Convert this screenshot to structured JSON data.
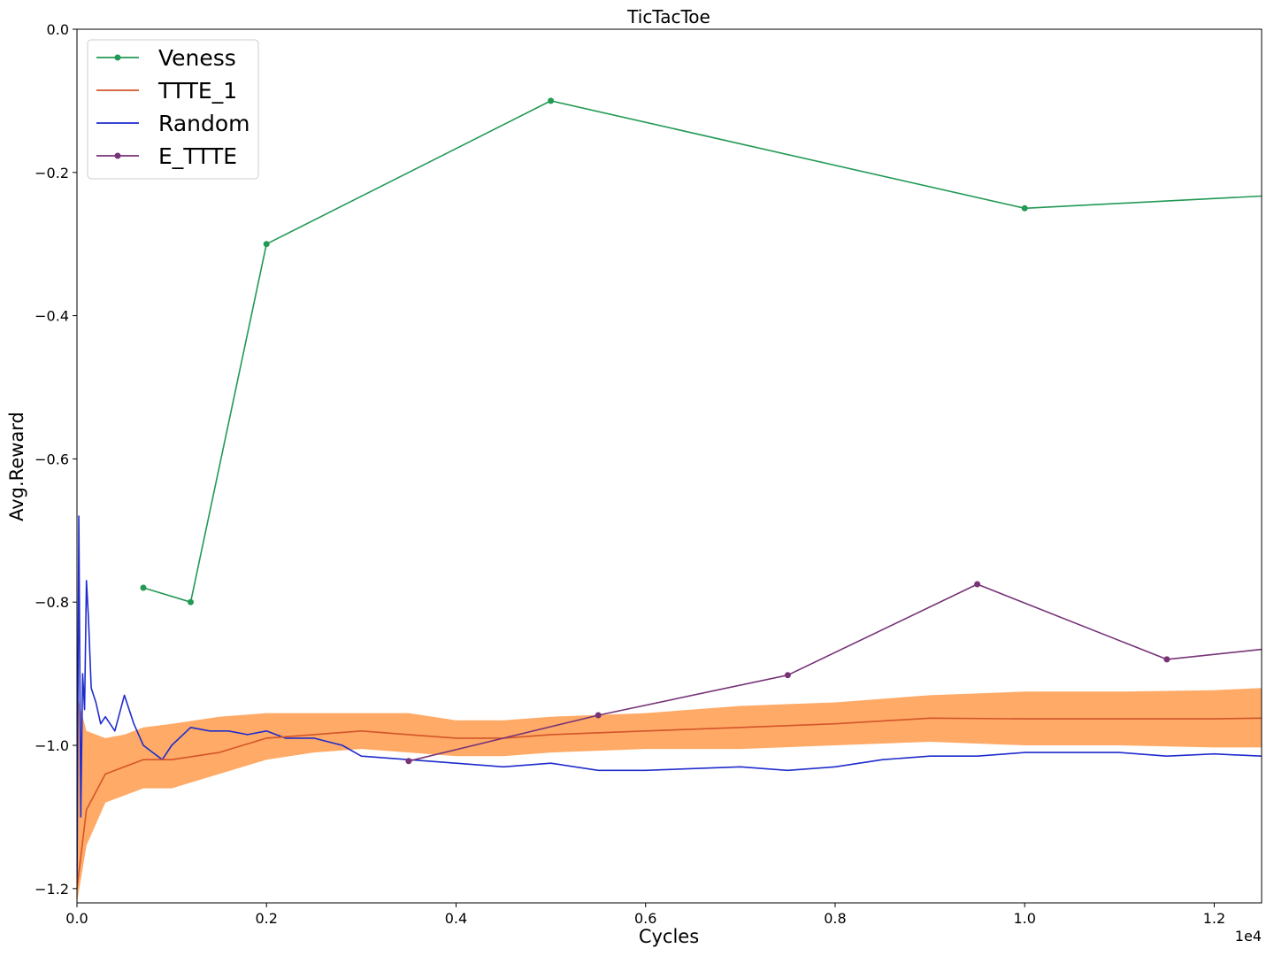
{
  "chart_data": {
    "type": "line",
    "title": "TicTacToe",
    "xlabel": "Cycles",
    "ylabel": "Avg.Reward",
    "x_offset_label": "1e4",
    "xlim": [
      0,
      12500
    ],
    "ylim": [
      -1.22,
      0.0
    ],
    "x_ticks": [
      0,
      2000,
      4000,
      6000,
      8000,
      10000,
      12000
    ],
    "x_tick_labels": [
      "0.0",
      "0.2",
      "0.4",
      "0.6",
      "0.8",
      "1.0",
      "1.2"
    ],
    "y_ticks": [
      -1.2,
      -1.0,
      -0.8,
      -0.6,
      -0.4,
      -0.2,
      0.0
    ],
    "y_tick_labels": [
      "−1.2",
      "−1.0",
      "−0.8",
      "−0.6",
      "−0.4",
      "−0.2",
      "0.0"
    ],
    "grid": false,
    "legend_position": "top-left",
    "series": [
      {
        "name": "Veness",
        "color": "#229955",
        "marker": "circle",
        "x": [
          700,
          1200,
          2000,
          5000,
          10000,
          12500
        ],
        "y": [
          -0.78,
          -0.8,
          -0.3,
          -0.1,
          -0.25,
          -0.233
        ]
      },
      {
        "name": "TTTE_1",
        "color": "#d4552a",
        "band_color": "#ffaa66",
        "marker": "none",
        "x": [
          0,
          100,
          300,
          500,
          700,
          1000,
          1500,
          2000,
          2500,
          3000,
          3500,
          4000,
          4500,
          5000,
          6000,
          7000,
          8000,
          9000,
          10000,
          11000,
          12000,
          12500
        ],
        "y": [
          -1.2,
          -1.09,
          -1.04,
          -1.03,
          -1.02,
          -1.02,
          -1.01,
          -0.99,
          -0.985,
          -0.98,
          -0.985,
          -0.99,
          -0.99,
          -0.985,
          -0.98,
          -0.975,
          -0.97,
          -0.962,
          -0.963,
          -0.963,
          -0.963,
          -0.962
        ],
        "band_lower": [
          -1.22,
          -1.14,
          -1.08,
          -1.07,
          -1.06,
          -1.06,
          -1.04,
          -1.02,
          -1.01,
          -1.005,
          -1.01,
          -1.015,
          -1.015,
          -1.01,
          -1.005,
          -1.005,
          -1.0,
          -0.995,
          -1.0,
          -1.0,
          -1.003,
          -1.003
        ],
        "band_upper": [
          -0.93,
          -0.98,
          -0.99,
          -0.985,
          -0.975,
          -0.97,
          -0.96,
          -0.955,
          -0.955,
          -0.955,
          -0.955,
          -0.965,
          -0.965,
          -0.96,
          -0.955,
          -0.945,
          -0.94,
          -0.93,
          -0.925,
          -0.925,
          -0.923,
          -0.92
        ]
      },
      {
        "name": "Random",
        "color": "#1f2ccc",
        "marker": "none",
        "x": [
          0,
          20,
          40,
          60,
          80,
          100,
          120,
          150,
          200,
          250,
          300,
          400,
          500,
          600,
          700,
          800,
          900,
          1000,
          1200,
          1400,
          1600,
          1800,
          2000,
          2200,
          2500,
          2800,
          3000,
          3500,
          4000,
          4500,
          5000,
          5500,
          6000,
          7000,
          7500,
          8000,
          8500,
          9000,
          9500,
          10000,
          11000,
          11500,
          12000,
          12500
        ],
        "y": [
          -1.2,
          -0.68,
          -1.1,
          -0.9,
          -0.95,
          -0.77,
          -0.82,
          -0.92,
          -0.94,
          -0.97,
          -0.96,
          -0.98,
          -0.93,
          -0.97,
          -1.0,
          -1.01,
          -1.02,
          -1.0,
          -0.975,
          -0.98,
          -0.98,
          -0.985,
          -0.98,
          -0.99,
          -0.99,
          -1.0,
          -1.015,
          -1.02,
          -1.025,
          -1.03,
          -1.025,
          -1.035,
          -1.035,
          -1.03,
          -1.035,
          -1.03,
          -1.02,
          -1.015,
          -1.015,
          -1.01,
          -1.01,
          -1.015,
          -1.012,
          -1.015
        ]
      },
      {
        "name": "E_TTTE",
        "color": "#773377",
        "marker": "circle",
        "x": [
          3500,
          5500,
          7500,
          9500,
          11500,
          12500
        ],
        "y": [
          -1.022,
          -0.958,
          -0.902,
          -0.775,
          -0.88,
          -0.866
        ]
      }
    ]
  }
}
